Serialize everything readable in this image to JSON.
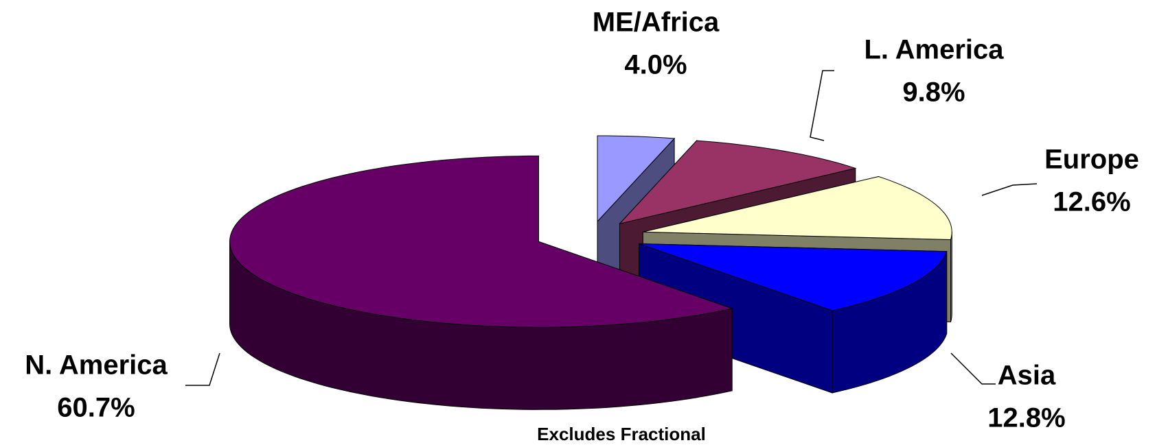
{
  "chart_data": {
    "type": "pie3d",
    "categories": [
      "ME/Africa",
      "L. America",
      "Europe",
      "Asia",
      "N. America"
    ],
    "values": [
      4.0,
      9.8,
      12.6,
      12.8,
      60.7
    ],
    "value_labels": [
      "4.0%",
      "9.8%",
      "12.6%",
      "12.8%",
      "60.7%"
    ],
    "colors": [
      "#9999ff",
      "#993366",
      "#ffffcc",
      "#0000ff",
      "#660066"
    ],
    "note": "Excludes Fractional"
  }
}
